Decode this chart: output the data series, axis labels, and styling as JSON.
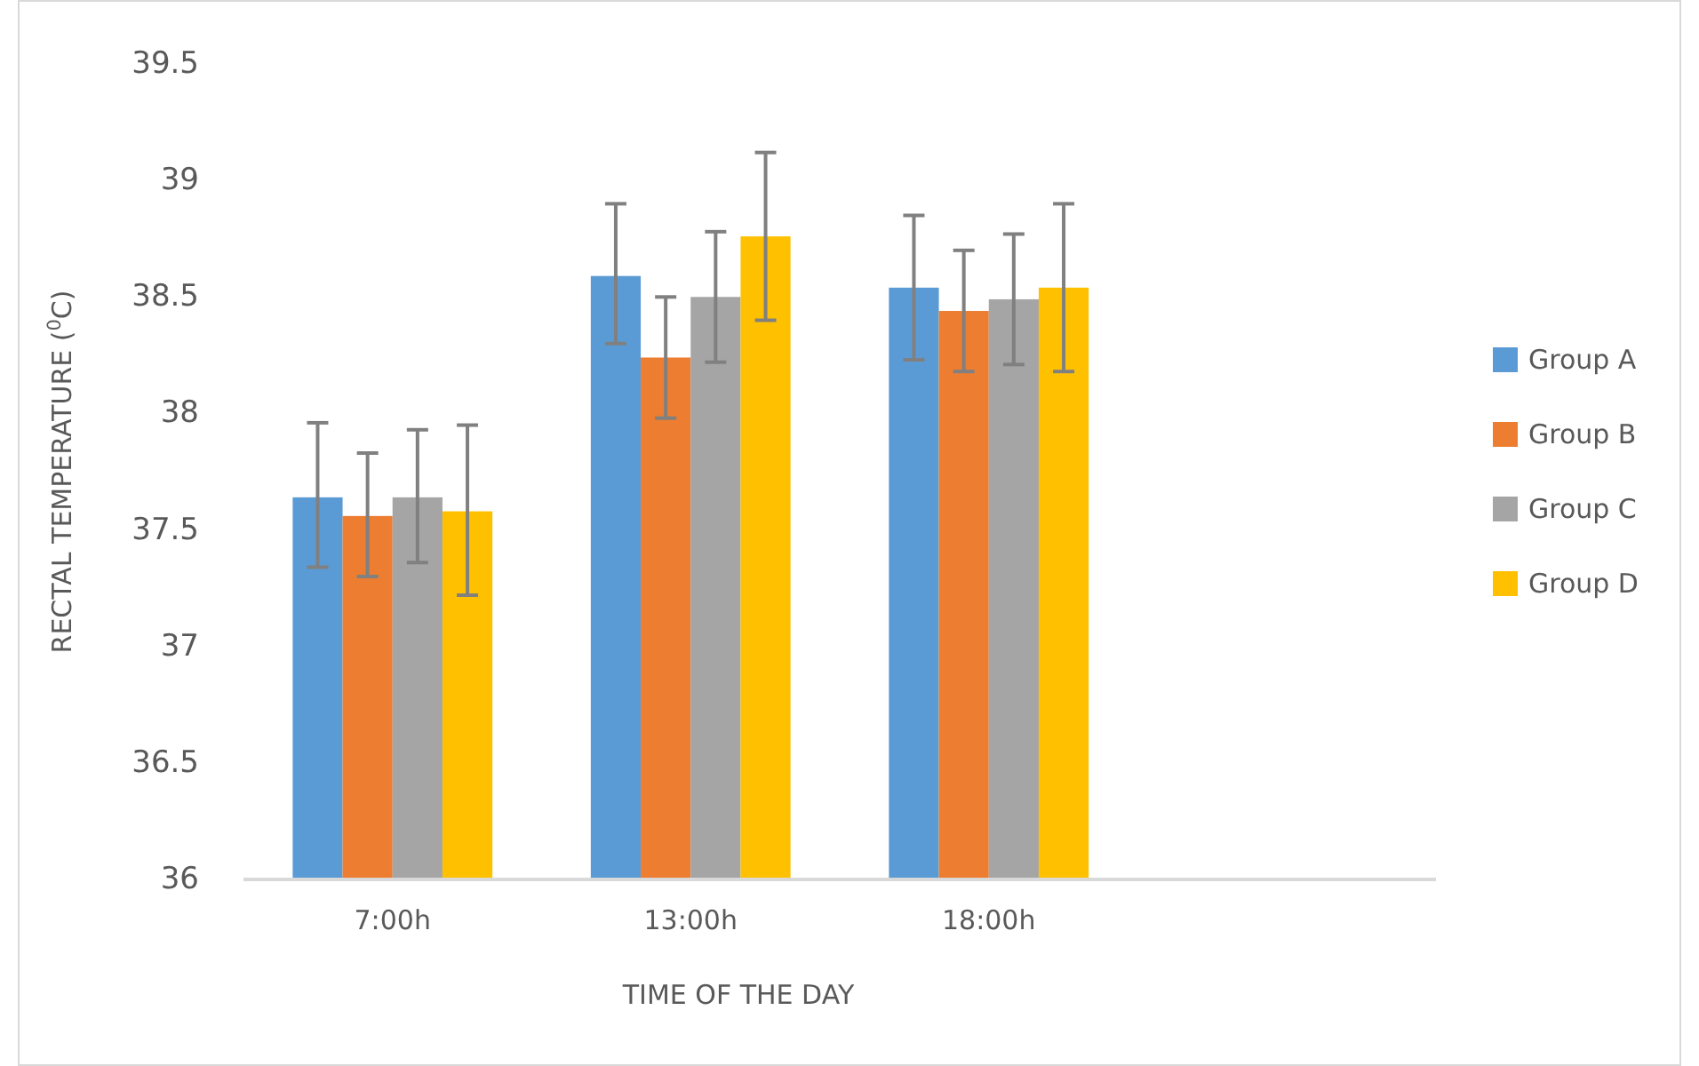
{
  "chart_data": {
    "type": "bar",
    "xlabel": "TIME OF THE DAY",
    "ylabel": "RECTAL TEMPERATURE ($^{0}$C)",
    "categories": [
      "7:00h",
      "13:00h",
      "18:00h",
      null
    ],
    "series": [
      {
        "name": "Group A",
        "color": "#5b9bd5",
        "values": [
          37.64,
          38.59,
          38.54,
          null
        ],
        "errors": [
          [
            37.34,
            37.96
          ],
          [
            38.3,
            38.9
          ],
          [
            38.23,
            38.85
          ],
          null
        ]
      },
      {
        "name": "Group B",
        "color": "#ed7d31",
        "values": [
          37.56,
          38.24,
          38.44,
          null
        ],
        "errors": [
          [
            37.3,
            37.83
          ],
          [
            37.98,
            38.5
          ],
          [
            38.18,
            38.7
          ],
          null
        ]
      },
      {
        "name": "Group C",
        "color": "#a5a5a5",
        "values": [
          37.64,
          38.5,
          38.49,
          null
        ],
        "errors": [
          [
            37.36,
            37.93
          ],
          [
            38.22,
            38.78
          ],
          [
            38.21,
            38.77
          ],
          null
        ]
      },
      {
        "name": "Group D",
        "color": "#ffc000",
        "values": [
          37.58,
          38.76,
          38.54,
          null
        ],
        "errors": [
          [
            37.22,
            37.95
          ],
          [
            38.4,
            39.12
          ],
          [
            38.18,
            38.9
          ],
          null
        ]
      }
    ],
    "ylim": [
      36,
      39.5
    ],
    "yticks": [
      36,
      36.5,
      37,
      37.5,
      38,
      38.5,
      39,
      39.5
    ],
    "grid": false,
    "legend": "right"
  }
}
